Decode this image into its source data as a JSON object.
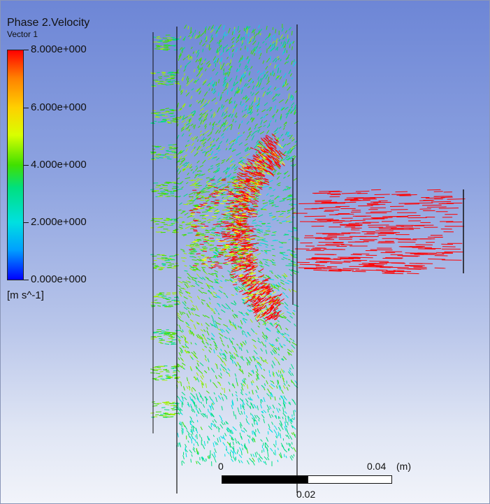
{
  "legend": {
    "title": "Phase 2.Velocity",
    "subtitle": "Vector 1",
    "units": "[m s^-1]",
    "ticks": [
      "8.000e+000",
      "6.000e+000",
      "4.000e+000",
      "2.000e+000",
      "0.000e+000"
    ],
    "colors": [
      "#0000ff",
      "#00a0ff",
      "#00e0e0",
      "#00e080",
      "#40e000",
      "#a0f000",
      "#ffff00",
      "#ff8000",
      "#ff0000"
    ]
  },
  "scale": {
    "label_start": "0",
    "label_mid": "0.02",
    "label_end": "0.04",
    "unit": "(m)"
  }
}
